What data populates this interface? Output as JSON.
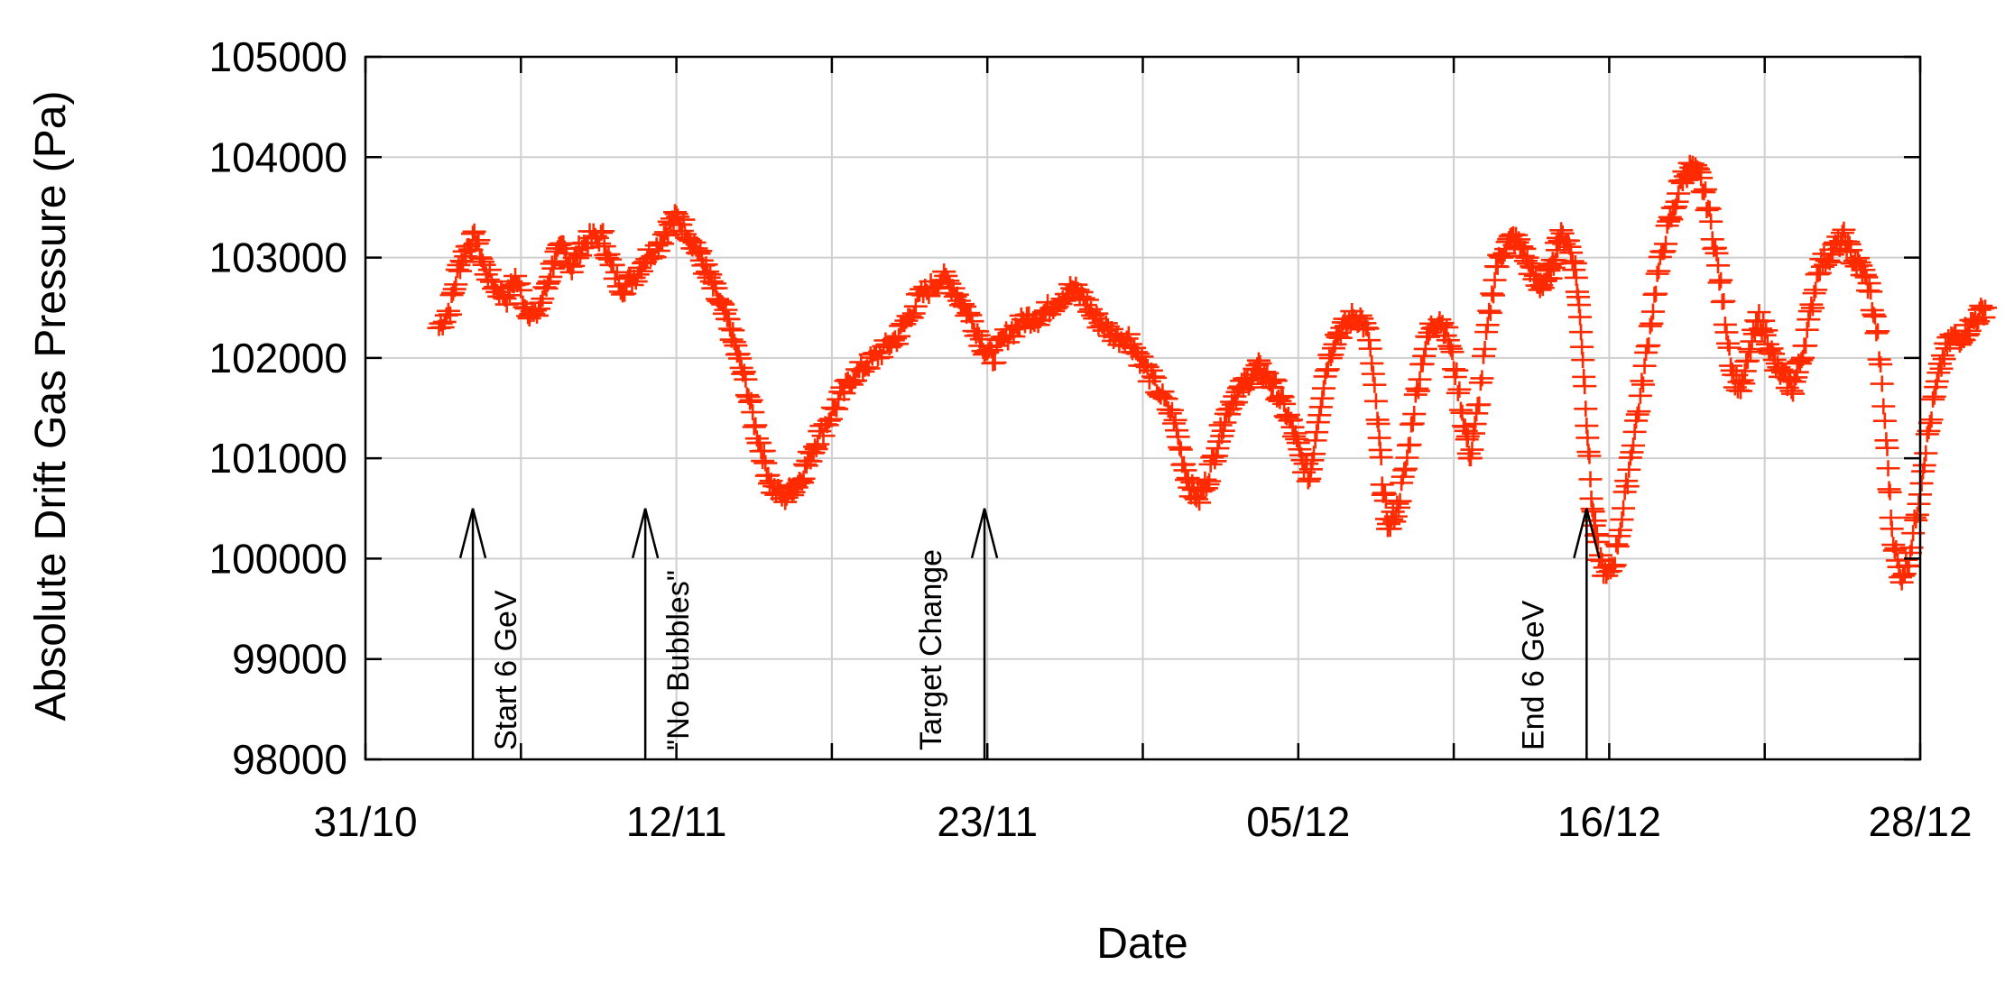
{
  "chart_data": {
    "type": "scatter",
    "xlabel": "Date",
    "ylabel": "Absolute Drift Gas Pressure (Pa)",
    "x_tick_labels": [
      "31/10",
      "12/11",
      "23/11",
      "05/12",
      "16/12",
      "28/12"
    ],
    "y_tick_labels": [
      "98000",
      "99000",
      "100000",
      "101000",
      "102000",
      "103000",
      "104000",
      "105000"
    ],
    "ylim": [
      98000,
      105000
    ],
    "xlim_days": [
      0,
      55
    ],
    "grid": true,
    "marker": "plus",
    "color": "#ff2a00",
    "series": [
      {
        "values_day_pa": [
          [
            2.6,
            102300
          ],
          [
            3.0,
            102500
          ],
          [
            3.3,
            102900
          ],
          [
            3.6,
            103100
          ],
          [
            3.9,
            103200
          ],
          [
            4.2,
            102900
          ],
          [
            4.6,
            102700
          ],
          [
            5.0,
            102600
          ],
          [
            5.3,
            102800
          ],
          [
            5.7,
            102500
          ],
          [
            6.0,
            102400
          ],
          [
            6.4,
            102700
          ],
          [
            6.7,
            103000
          ],
          [
            7.0,
            103100
          ],
          [
            7.3,
            102900
          ],
          [
            7.6,
            103100
          ],
          [
            8.0,
            103200
          ],
          [
            8.4,
            103200
          ],
          [
            8.7,
            102900
          ],
          [
            9.1,
            102700
          ],
          [
            9.5,
            102800
          ],
          [
            9.9,
            103000
          ],
          [
            10.3,
            103100
          ],
          [
            10.7,
            103300
          ],
          [
            11.0,
            103400
          ],
          [
            11.3,
            103300
          ],
          [
            11.7,
            103100
          ],
          [
            12.0,
            102900
          ],
          [
            12.3,
            102700
          ],
          [
            12.6,
            102500
          ],
          [
            12.9,
            102300
          ],
          [
            13.2,
            102000
          ],
          [
            13.5,
            101700
          ],
          [
            13.8,
            101300
          ],
          [
            14.1,
            101000
          ],
          [
            14.4,
            100700
          ],
          [
            14.8,
            100600
          ],
          [
            15.1,
            100700
          ],
          [
            15.4,
            100800
          ],
          [
            15.7,
            101000
          ],
          [
            16.0,
            101200
          ],
          [
            16.4,
            101400
          ],
          [
            16.8,
            101600
          ],
          [
            17.2,
            101800
          ],
          [
            17.6,
            101900
          ],
          [
            18.0,
            102000
          ],
          [
            18.4,
            102100
          ],
          [
            18.8,
            102200
          ],
          [
            19.2,
            102400
          ],
          [
            19.6,
            102600
          ],
          [
            20.0,
            102700
          ],
          [
            20.4,
            102800
          ],
          [
            20.8,
            102700
          ],
          [
            21.2,
            102500
          ],
          [
            21.6,
            102300
          ],
          [
            21.9,
            102100
          ],
          [
            22.2,
            102000
          ],
          [
            22.6,
            102200
          ],
          [
            23.0,
            102300
          ],
          [
            23.4,
            102400
          ],
          [
            23.8,
            102400
          ],
          [
            24.2,
            102500
          ],
          [
            24.6,
            102600
          ],
          [
            25.0,
            102700
          ],
          [
            25.4,
            102600
          ],
          [
            25.8,
            102400
          ],
          [
            26.2,
            102300
          ],
          [
            26.6,
            102200
          ],
          [
            27.0,
            102200
          ],
          [
            27.4,
            102000
          ],
          [
            27.8,
            101800
          ],
          [
            28.2,
            101600
          ],
          [
            28.6,
            101400
          ],
          [
            28.9,
            101000
          ],
          [
            29.2,
            100700
          ],
          [
            29.5,
            100600
          ],
          [
            29.8,
            100800
          ],
          [
            30.1,
            101100
          ],
          [
            30.4,
            101400
          ],
          [
            30.7,
            101600
          ],
          [
            31.0,
            101700
          ],
          [
            31.3,
            101800
          ],
          [
            31.6,
            101900
          ],
          [
            31.9,
            101800
          ],
          [
            32.2,
            101700
          ],
          [
            32.5,
            101500
          ],
          [
            32.8,
            101300
          ],
          [
            33.1,
            101000
          ],
          [
            33.4,
            100800
          ],
          [
            33.7,
            101400
          ],
          [
            34.0,
            101900
          ],
          [
            34.3,
            102200
          ],
          [
            34.6,
            102300
          ],
          [
            34.9,
            102400
          ],
          [
            35.2,
            102400
          ],
          [
            35.5,
            102200
          ],
          [
            35.8,
            101400
          ],
          [
            36.0,
            100700
          ],
          [
            36.2,
            100300
          ],
          [
            36.5,
            100500
          ],
          [
            36.8,
            100900
          ],
          [
            37.1,
            101500
          ],
          [
            37.4,
            102000
          ],
          [
            37.7,
            102300
          ],
          [
            38.0,
            102400
          ],
          [
            38.3,
            102200
          ],
          [
            38.6,
            101800
          ],
          [
            38.9,
            101300
          ],
          [
            39.1,
            101000
          ],
          [
            39.4,
            101600
          ],
          [
            39.7,
            102300
          ],
          [
            40.0,
            102900
          ],
          [
            40.3,
            103100
          ],
          [
            40.6,
            103200
          ],
          [
            40.9,
            103100
          ],
          [
            41.2,
            102900
          ],
          [
            41.5,
            102700
          ],
          [
            41.8,
            102800
          ],
          [
            42.0,
            102900
          ],
          [
            42.2,
            103200
          ],
          [
            42.5,
            103200
          ],
          [
            42.8,
            102900
          ],
          [
            43.0,
            102300
          ],
          [
            43.2,
            101400
          ],
          [
            43.4,
            100500
          ],
          [
            43.6,
            100100
          ],
          [
            43.9,
            99800
          ],
          [
            44.2,
            100000
          ],
          [
            44.5,
            100500
          ],
          [
            44.8,
            101100
          ],
          [
            45.1,
            101600
          ],
          [
            45.4,
            102200
          ],
          [
            45.7,
            102800
          ],
          [
            46.0,
            103200
          ],
          [
            46.3,
            103500
          ],
          [
            46.6,
            103800
          ],
          [
            46.9,
            103900
          ],
          [
            47.2,
            103800
          ],
          [
            47.5,
            103500
          ],
          [
            47.8,
            103000
          ],
          [
            48.1,
            102400
          ],
          [
            48.4,
            101800
          ],
          [
            48.7,
            101700
          ],
          [
            49.0,
            102100
          ],
          [
            49.3,
            102400
          ],
          [
            49.6,
            102200
          ],
          [
            49.9,
            101900
          ],
          [
            50.2,
            101800
          ],
          [
            50.5,
            101700
          ],
          [
            50.8,
            102000
          ],
          [
            51.1,
            102400
          ],
          [
            51.4,
            102900
          ],
          [
            51.7,
            103000
          ],
          [
            52.0,
            103100
          ],
          [
            52.3,
            103200
          ],
          [
            52.6,
            103000
          ],
          [
            52.9,
            102900
          ],
          [
            53.2,
            102700
          ],
          [
            53.5,
            102200
          ],
          [
            53.8,
            101200
          ],
          [
            54.0,
            100300
          ],
          [
            54.3,
            99800
          ],
          [
            54.6,
            100000
          ],
          [
            54.9,
            100500
          ],
          [
            55.2,
            101100
          ],
          [
            55.5,
            101600
          ],
          [
            55.8,
            102000
          ],
          [
            56.1,
            102200
          ],
          [
            56.4,
            102200
          ],
          [
            56.7,
            102300
          ],
          [
            57.0,
            102400
          ],
          [
            57.3,
            102500
          ]
        ]
      }
    ],
    "annotations": [
      {
        "text": "Start 6 GeV",
        "day": 3.8
      },
      {
        "text": "\"No Bubbles\"",
        "day": 9.9
      },
      {
        "text": "Target Change",
        "day": 21.9
      },
      {
        "text": "End 6 GeV",
        "day": 43.2
      }
    ]
  }
}
